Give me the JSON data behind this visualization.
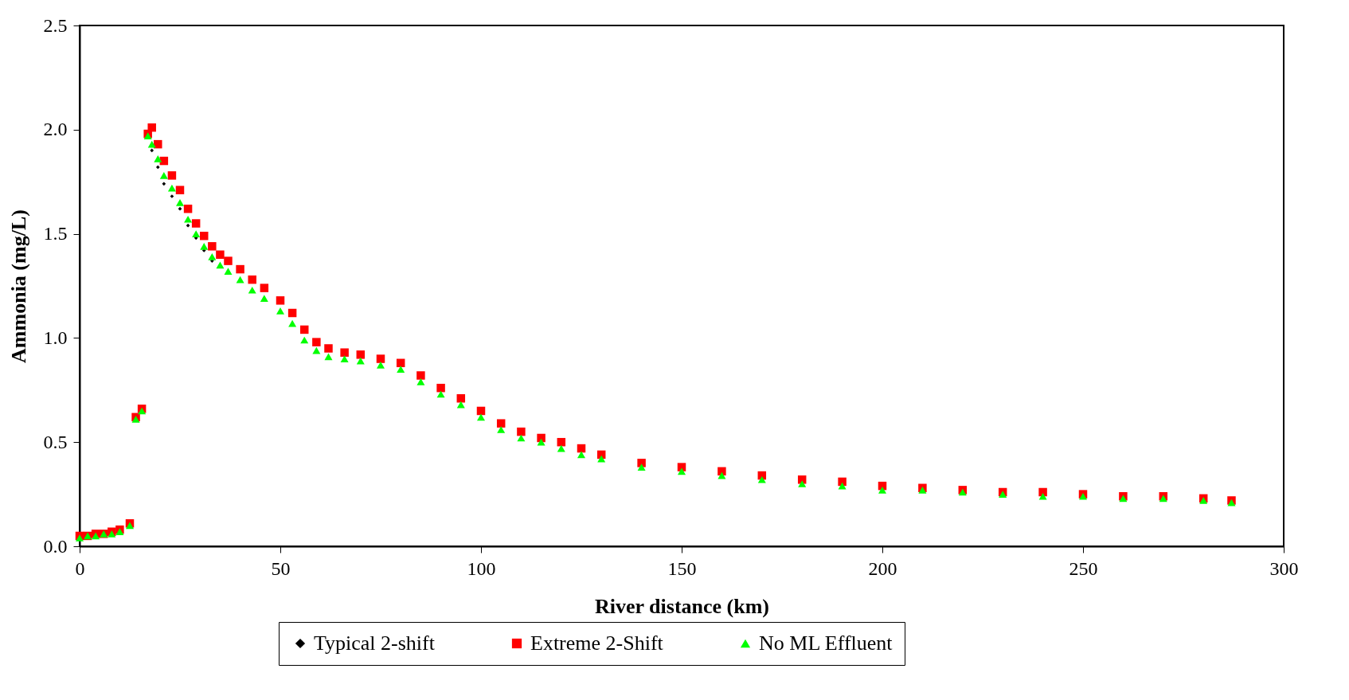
{
  "chart_data": {
    "type": "scatter",
    "xlabel": "River distance (km)",
    "ylabel": "Ammonia (mg/L)",
    "x": [
      0,
      2,
      4,
      6,
      8,
      10,
      12.5,
      14,
      15.5,
      17,
      18,
      19.5,
      21,
      23,
      25,
      27,
      29,
      31,
      33,
      35,
      37,
      40,
      43,
      46,
      50,
      53,
      56,
      59,
      62,
      66,
      70,
      75,
      80,
      85,
      90,
      95,
      100,
      105,
      110,
      115,
      120,
      125,
      130,
      140,
      150,
      160,
      170,
      180,
      190,
      200,
      210,
      220,
      230,
      240,
      250,
      260,
      270,
      280,
      287
    ],
    "series": [
      {
        "name": "Typical 2-shift",
        "color": "#000000",
        "marker": "diamond",
        "values": [
          null,
          null,
          null,
          null,
          null,
          null,
          null,
          null,
          null,
          null,
          1.9,
          1.82,
          1.74,
          1.68,
          1.62,
          1.54,
          1.48,
          1.42,
          1.37,
          null,
          null,
          null,
          null,
          null,
          null,
          null,
          null,
          null,
          null,
          null,
          null,
          null,
          null,
          null,
          null,
          null,
          null,
          null,
          null,
          null,
          null,
          null,
          null,
          null,
          null,
          null,
          null,
          null,
          null,
          null,
          null,
          null,
          null,
          null,
          null,
          null,
          null,
          null,
          null
        ]
      },
      {
        "name": "Extreme 2-Shift",
        "color": "#ff0000",
        "marker": "square",
        "values": [
          0.05,
          0.05,
          0.06,
          0.06,
          0.07,
          0.08,
          0.11,
          0.62,
          0.66,
          1.98,
          2.01,
          1.93,
          1.85,
          1.78,
          1.71,
          1.62,
          1.55,
          1.49,
          1.44,
          1.4,
          1.37,
          1.33,
          1.28,
          1.24,
          1.18,
          1.12,
          1.04,
          0.98,
          0.95,
          0.93,
          0.92,
          0.9,
          0.88,
          0.82,
          0.76,
          0.71,
          0.65,
          0.59,
          0.55,
          0.52,
          0.5,
          0.47,
          0.44,
          0.4,
          0.38,
          0.36,
          0.34,
          0.32,
          0.31,
          0.29,
          0.28,
          0.27,
          0.26,
          0.26,
          0.25,
          0.24,
          0.24,
          0.23,
          0.22
        ]
      },
      {
        "name": "No ML Effluent",
        "color": "#00ff00",
        "marker": "triangle",
        "values": [
          0.04,
          0.05,
          0.05,
          0.06,
          0.06,
          0.07,
          0.1,
          0.61,
          0.65,
          1.97,
          1.93,
          1.86,
          1.78,
          1.72,
          1.65,
          1.57,
          1.5,
          1.44,
          1.39,
          1.35,
          1.32,
          1.28,
          1.23,
          1.19,
          1.13,
          1.07,
          0.99,
          0.94,
          0.91,
          0.9,
          0.89,
          0.87,
          0.85,
          0.79,
          0.73,
          0.68,
          0.62,
          0.56,
          0.52,
          0.5,
          0.47,
          0.44,
          0.42,
          0.38,
          0.36,
          0.34,
          0.32,
          0.3,
          0.29,
          0.27,
          0.27,
          0.26,
          0.25,
          0.24,
          0.24,
          0.23,
          0.23,
          0.22,
          0.21
        ]
      }
    ],
    "xlim": [
      0,
      300
    ],
    "xticks": [
      0,
      50,
      100,
      150,
      200,
      250,
      300
    ],
    "ylim": [
      0,
      2.5
    ],
    "yticks": [
      {
        "value": 0,
        "label": "0.0"
      },
      {
        "value": 0.5,
        "label": "0.5"
      },
      {
        "value": 1,
        "label": "1.0"
      },
      {
        "value": 1.5,
        "label": "1.5"
      },
      {
        "value": 2,
        "label": "2.0"
      },
      {
        "value": 2.5,
        "label": "2.5"
      }
    ],
    "grid": false,
    "legend": "bottom"
  }
}
